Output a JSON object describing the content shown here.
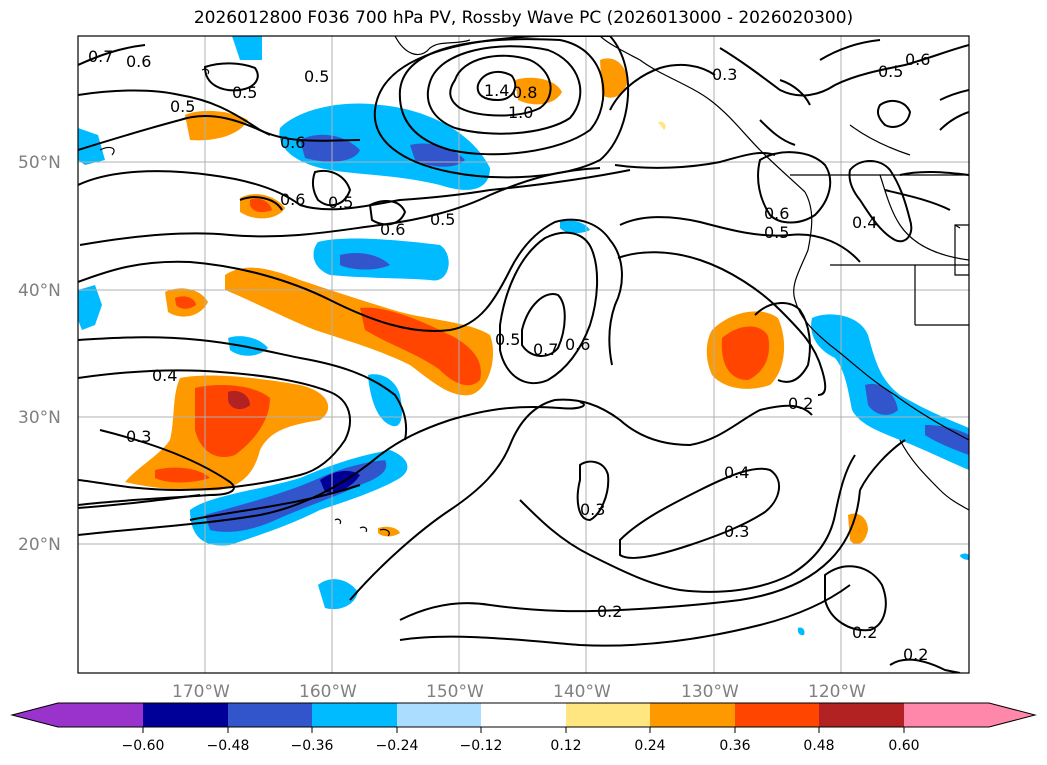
{
  "title": "2026012800 F036 700 hPa PV, Rossby Wave PC (2026013000 - 2026020300)",
  "lat_labels": [
    "50°N",
    "40°N",
    "30°N",
    "20°N"
  ],
  "lon_labels": [
    "170°W",
    "160°W",
    "150°W",
    "140°W",
    "130°W",
    "120°W"
  ],
  "contour_labels": {
    "c0_7a": "0.7",
    "c0_6a": "0.6",
    "c0_5a": "0.5",
    "c0_5b": "0.5",
    "c0_5c": "0.5",
    "c1_4": "1.4",
    "c1_0": "1.0",
    "c0_3a": "0.3",
    "c0_5d": "0.5",
    "c0_6b": "0.6",
    "c0_6c": "0.6",
    "c0_6d": "0.6",
    "c0_5e": "0.5",
    "c0_6e": "0.6",
    "c0_5f": "0.5",
    "c0_6f": "0.6",
    "c0_5g": "0.5",
    "c0_4a": "0.4",
    "c0_5h": "0.5",
    "c0_7b": "0.7",
    "c0_6g": "0.6",
    "c0_4b": "0.4",
    "c0_3b": "0.3",
    "c0_2a": "0.2",
    "c0_4c": "0.4",
    "c0_3c": "0.3",
    "c0_3d": "0.3",
    "c0_2b": "0.2",
    "c0_2c": "0.2",
    "c0_2d": "0.2",
    "c1_0b": "0.8"
  },
  "colorbar": {
    "ticks": [
      "−0.60",
      "−0.48",
      "−0.36",
      "−0.24",
      "−0.12",
      "0.12",
      "0.24",
      "0.36",
      "0.48",
      "0.60"
    ],
    "colors": [
      "#9933cc",
      "#000099",
      "#3355cc",
      "#00bbff",
      "#aaddff",
      "#ffffff",
      "#ffe680",
      "#ff9900",
      "#ff4500",
      "#b22222",
      "#ff88aa"
    ]
  },
  "colors": {
    "neg_light": "#aaddff",
    "neg_mid": "#00bbff",
    "neg_strong": "#3355cc",
    "neg_deep": "#000099",
    "pos_light": "#ffe680",
    "pos_mid": "#ff9900",
    "pos_strong": "#ff4500",
    "pos_deep": "#b22222"
  }
}
